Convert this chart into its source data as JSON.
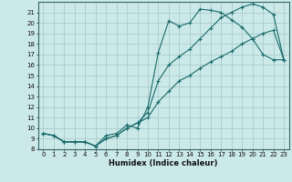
{
  "xlabel": "Humidex (Indice chaleur)",
  "xlim": [
    -0.5,
    23.5
  ],
  "ylim": [
    8,
    22
  ],
  "xticks": [
    0,
    1,
    2,
    3,
    4,
    5,
    6,
    7,
    8,
    9,
    10,
    11,
    12,
    13,
    14,
    15,
    16,
    17,
    18,
    19,
    20,
    21,
    22,
    23
  ],
  "yticks": [
    8,
    9,
    10,
    11,
    12,
    13,
    14,
    15,
    16,
    17,
    18,
    19,
    20,
    21
  ],
  "bg_color": "#cce9e9",
  "grid_color": "#aacccc",
  "line_color": "#1a6b6b",
  "line1_x": [
    0,
    1,
    2,
    3,
    4,
    5,
    6,
    7,
    8,
    9,
    10,
    11,
    12,
    13,
    14,
    15,
    16,
    17,
    18,
    19,
    20,
    21,
    22,
    23
  ],
  "line1_y": [
    9.5,
    9.3,
    8.7,
    8.7,
    8.7,
    8.3,
    9.3,
    9.5,
    10.3,
    10.0,
    12.0,
    17.2,
    20.2,
    19.7,
    20.0,
    21.3,
    21.2,
    21.0,
    20.3,
    19.6,
    18.5,
    17.0,
    16.5,
    16.5
  ],
  "line2_x": [
    0,
    1,
    2,
    3,
    4,
    5,
    6,
    7,
    8,
    9,
    10,
    11,
    12,
    13,
    14,
    15,
    16,
    17,
    18,
    19,
    20,
    21,
    22,
    23
  ],
  "line2_y": [
    9.5,
    9.3,
    8.7,
    8.7,
    8.7,
    8.3,
    9.0,
    9.3,
    10.0,
    10.5,
    11.5,
    14.5,
    16.0,
    16.8,
    17.5,
    18.5,
    19.5,
    20.5,
    21.0,
    21.5,
    21.8,
    21.5,
    20.8,
    16.5
  ],
  "line3_x": [
    0,
    1,
    2,
    3,
    4,
    5,
    6,
    7,
    8,
    9,
    10,
    11,
    12,
    13,
    14,
    15,
    16,
    17,
    18,
    19,
    20,
    21,
    22,
    23
  ],
  "line3_y": [
    9.5,
    9.3,
    8.7,
    8.7,
    8.7,
    8.3,
    9.0,
    9.3,
    10.0,
    10.5,
    11.0,
    12.5,
    13.5,
    14.5,
    15.0,
    15.7,
    16.3,
    16.8,
    17.3,
    18.0,
    18.5,
    19.0,
    19.3,
    16.5
  ],
  "tick_fontsize": 5,
  "xlabel_fontsize": 6
}
